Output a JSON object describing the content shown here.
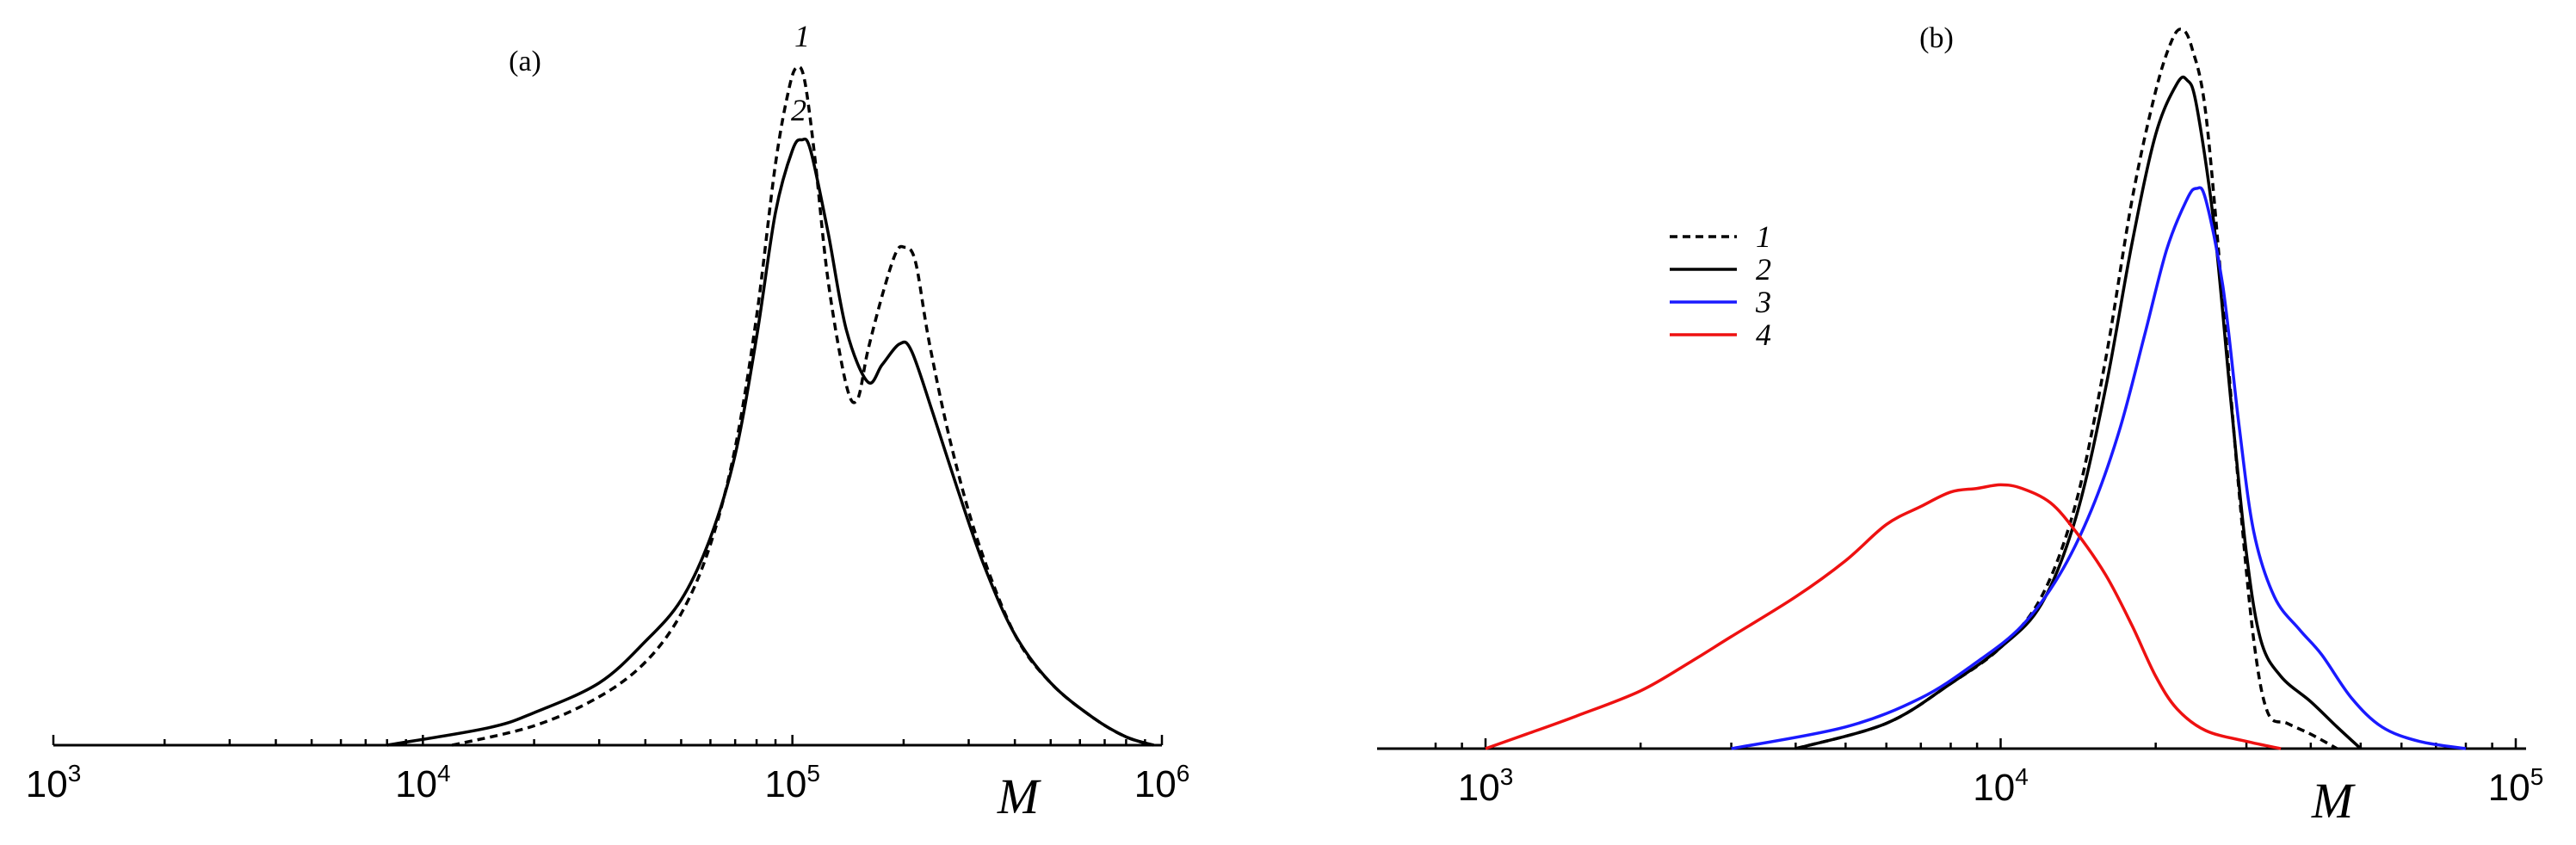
{
  "chart_data": [
    {
      "panel": "(a)",
      "type": "line",
      "title": "(a)",
      "xlabel": "M",
      "ylabel": "",
      "xscale": "log",
      "xlim": [
        1000,
        1000000
      ],
      "ylim": [
        0,
        1.0
      ],
      "grid": false,
      "xticks": [
        {
          "value": 1000,
          "label": "10",
          "exp": "3"
        },
        {
          "value": 10000,
          "label": "10",
          "exp": "4"
        },
        {
          "value": 100000,
          "label": "10",
          "exp": "5"
        },
        {
          "value": 1000000,
          "label": "10",
          "exp": "6"
        }
      ],
      "series": [
        {
          "name": "1",
          "color": "#000000",
          "dash": true,
          "points": [
            [
              12000,
              0.0
            ],
            [
              20000,
              0.028
            ],
            [
              30000,
              0.07
            ],
            [
              40000,
              0.12
            ],
            [
              50000,
              0.19
            ],
            [
              60000,
              0.29
            ],
            [
              70000,
              0.43
            ],
            [
              80000,
              0.62
            ],
            [
              90000,
              0.84
            ],
            [
              98000,
              0.95
            ],
            [
              103000,
              0.98
            ],
            [
              108000,
              0.96
            ],
            [
              115000,
              0.85
            ],
            [
              125000,
              0.67
            ],
            [
              140000,
              0.52
            ],
            [
              150000,
              0.5
            ],
            [
              160000,
              0.57
            ],
            [
              175000,
              0.65
            ],
            [
              190000,
              0.71
            ],
            [
              200000,
              0.72
            ],
            [
              215000,
              0.7
            ],
            [
              235000,
              0.58
            ],
            [
              270000,
              0.43
            ],
            [
              320000,
              0.29
            ],
            [
              400000,
              0.16
            ],
            [
              500000,
              0.09
            ],
            [
              650000,
              0.04
            ],
            [
              800000,
              0.012
            ],
            [
              950000,
              0.0
            ]
          ]
        },
        {
          "name": "2",
          "color": "#000000",
          "dash": false,
          "points": [
            [
              8000,
              0.0
            ],
            [
              15000,
              0.025
            ],
            [
              20000,
              0.047
            ],
            [
              30000,
              0.09
            ],
            [
              40000,
              0.15
            ],
            [
              50000,
              0.21
            ],
            [
              60000,
              0.3
            ],
            [
              70000,
              0.42
            ],
            [
              80000,
              0.59
            ],
            [
              90000,
              0.77
            ],
            [
              100000,
              0.86
            ],
            [
              106000,
              0.875
            ],
            [
              112000,
              0.86
            ],
            [
              125000,
              0.74
            ],
            [
              140000,
              0.6
            ],
            [
              160000,
              0.525
            ],
            [
              175000,
              0.55
            ],
            [
              195000,
              0.58
            ],
            [
              210000,
              0.57
            ],
            [
              240000,
              0.48
            ],
            [
              280000,
              0.37
            ],
            [
              330000,
              0.26
            ],
            [
              400000,
              0.16
            ],
            [
              500000,
              0.09
            ],
            [
              650000,
              0.04
            ],
            [
              800000,
              0.012
            ],
            [
              950000,
              0.0
            ]
          ]
        }
      ]
    },
    {
      "panel": "(b)",
      "type": "line",
      "title": "(b)",
      "xlabel": "M",
      "ylabel": "",
      "xscale": "log",
      "xlim": [
        800,
        100000
      ],
      "ylim": [
        0,
        1.0
      ],
      "grid": false,
      "legend_position": "upper-left",
      "xticks": [
        {
          "value": 1000,
          "label": "10",
          "exp": "3"
        },
        {
          "value": 10000,
          "label": "10",
          "exp": "4"
        },
        {
          "value": 100000,
          "label": "10",
          "exp": "5"
        }
      ],
      "series": [
        {
          "name": "1",
          "color": "#000000",
          "dash": true,
          "points": [
            [
              4000,
              0.0
            ],
            [
              6000,
              0.035
            ],
            [
              8000,
              0.09
            ],
            [
              10000,
              0.14
            ],
            [
              12000,
              0.21
            ],
            [
              14000,
              0.34
            ],
            [
              16000,
              0.54
            ],
            [
              18000,
              0.76
            ],
            [
              20000,
              0.91
            ],
            [
              21500,
              0.98
            ],
            [
              22500,
              0.995
            ],
            [
              23500,
              0.97
            ],
            [
              25000,
              0.88
            ],
            [
              27000,
              0.62
            ],
            [
              29000,
              0.36
            ],
            [
              31000,
              0.15
            ],
            [
              33000,
              0.05
            ],
            [
              36000,
              0.035
            ],
            [
              40000,
              0.02
            ],
            [
              45000,
              0.0
            ]
          ]
        },
        {
          "name": "2",
          "color": "#000000",
          "dash": false,
          "points": [
            [
              4000,
              0.0
            ],
            [
              6000,
              0.035
            ],
            [
              8000,
              0.09
            ],
            [
              10000,
              0.14
            ],
            [
              12000,
              0.2
            ],
            [
              14000,
              0.32
            ],
            [
              16000,
              0.5
            ],
            [
              18000,
              0.7
            ],
            [
              20000,
              0.85
            ],
            [
              22000,
              0.92
            ],
            [
              23000,
              0.925
            ],
            [
              24000,
              0.89
            ],
            [
              26000,
              0.72
            ],
            [
              28000,
              0.48
            ],
            [
              30000,
              0.27
            ],
            [
              32000,
              0.15
            ],
            [
              35000,
              0.1
            ],
            [
              40000,
              0.065
            ],
            [
              45000,
              0.03
            ],
            [
              50000,
              0.0
            ]
          ]
        },
        {
          "name": "3",
          "color": "#1a1aff",
          "dash": false,
          "points": [
            [
              3000,
              0.0
            ],
            [
              5000,
              0.03
            ],
            [
              7000,
              0.07
            ],
            [
              9000,
              0.12
            ],
            [
              11000,
              0.17
            ],
            [
              13000,
              0.24
            ],
            [
              15000,
              0.33
            ],
            [
              17000,
              0.44
            ],
            [
              19000,
              0.57
            ],
            [
              21000,
              0.69
            ],
            [
              23000,
              0.76
            ],
            [
              24000,
              0.775
            ],
            [
              25000,
              0.76
            ],
            [
              27000,
              0.64
            ],
            [
              29000,
              0.45
            ],
            [
              31000,
              0.3
            ],
            [
              34000,
              0.21
            ],
            [
              38000,
              0.165
            ],
            [
              42000,
              0.13
            ],
            [
              48000,
              0.07
            ],
            [
              55000,
              0.03
            ],
            [
              65000,
              0.01
            ],
            [
              80000,
              0.0
            ]
          ]
        },
        {
          "name": "4",
          "color": "#ee1111",
          "dash": false,
          "points": [
            [
              1000,
              0.0
            ],
            [
              1200,
              0.02
            ],
            [
              1500,
              0.045
            ],
            [
              2000,
              0.08
            ],
            [
              2500,
              0.12
            ],
            [
              3000,
              0.155
            ],
            [
              4000,
              0.21
            ],
            [
              5000,
              0.26
            ],
            [
              6000,
              0.31
            ],
            [
              7000,
              0.335
            ],
            [
              8000,
              0.355
            ],
            [
              9000,
              0.36
            ],
            [
              10000,
              0.365
            ],
            [
              11000,
              0.36
            ],
            [
              12500,
              0.34
            ],
            [
              14000,
              0.3
            ],
            [
              16000,
              0.24
            ],
            [
              18000,
              0.17
            ],
            [
              20000,
              0.1
            ],
            [
              22000,
              0.055
            ],
            [
              25000,
              0.025
            ],
            [
              30000,
              0.01
            ],
            [
              35000,
              0.0
            ]
          ]
        }
      ]
    }
  ]
}
